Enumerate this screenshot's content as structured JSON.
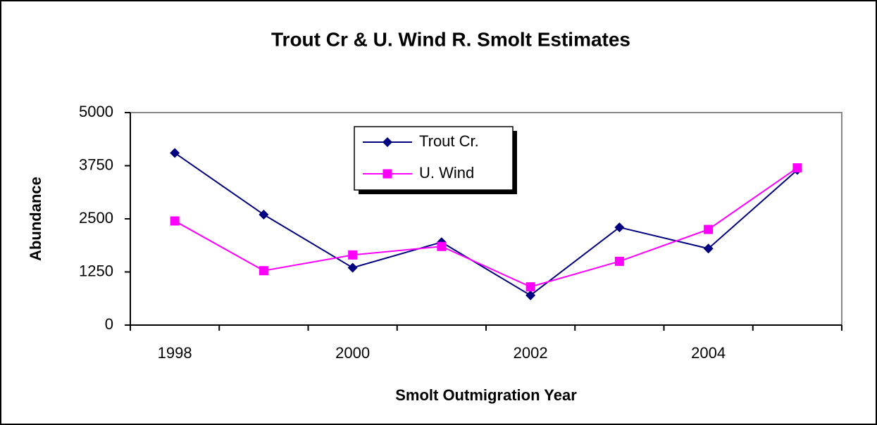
{
  "chart_data": {
    "type": "line",
    "title": "Trout Cr & U. Wind R. Smolt Estimates",
    "x_label": "Smolt Outmigration Year",
    "y_label": "Abundance",
    "categories": [
      "1998",
      null,
      "2000",
      null,
      "2002",
      null,
      "2004",
      null
    ],
    "series": [
      {
        "name": "Trout Cr.",
        "color": "#000080",
        "marker": "diamond",
        "values": [
          4050,
          2600,
          1350,
          1950,
          700,
          2300,
          1800,
          3650
        ]
      },
      {
        "name": "U. Wind",
        "color": "#ff00ff",
        "marker": "square",
        "values": [
          2450,
          1280,
          1650,
          1850,
          900,
          1500,
          2250,
          3700
        ]
      }
    ],
    "ylim": [
      0,
      5000
    ],
    "yticks": [
      0,
      1250,
      2500,
      3750,
      5000
    ],
    "grid": false,
    "legend": "top"
  }
}
